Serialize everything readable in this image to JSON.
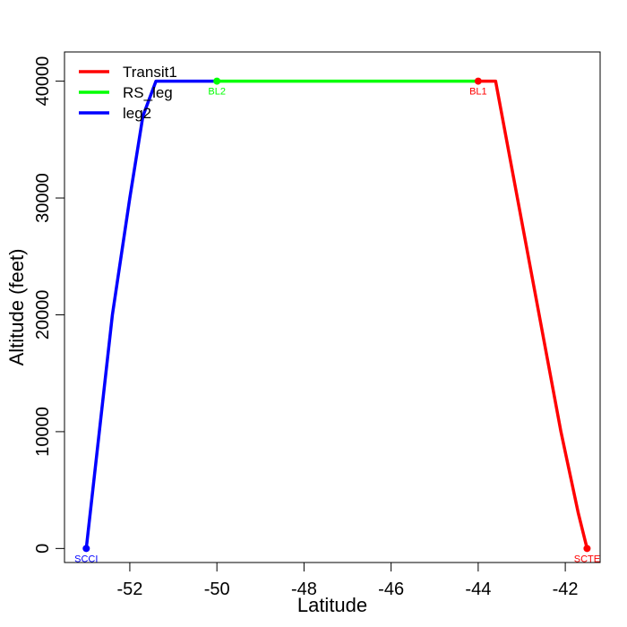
{
  "chart_data": {
    "type": "line",
    "title": "",
    "xlabel": "Latitude",
    "ylabel": "Altitude (feet)",
    "xlim": [
      -53.5,
      -41.2
    ],
    "ylim": [
      -1200,
      42500
    ],
    "x_ticks": [
      -52,
      -50,
      -48,
      -46,
      -44,
      -42
    ],
    "y_ticks": [
      0,
      10000,
      20000,
      30000,
      40000
    ],
    "grid": false,
    "legend_position": "top-left",
    "series": [
      {
        "name": "Transit1",
        "color": "#ff0000",
        "x": [
          -44.0,
          -43.6,
          -43.1,
          -42.6,
          -42.1,
          -41.7,
          -41.5
        ],
        "y": [
          40000,
          40000,
          30000,
          20000,
          10000,
          3000,
          0
        ]
      },
      {
        "name": "RS_leg",
        "color": "#00ff00",
        "x": [
          -50.0,
          -44.0
        ],
        "y": [
          40000,
          40000
        ]
      },
      {
        "name": "leg2",
        "color": "#0000ff",
        "x": [
          -53.0,
          -52.7,
          -52.4,
          -52.0,
          -51.7,
          -51.4,
          -50.0
        ],
        "y": [
          0,
          10000,
          20000,
          30000,
          37000,
          40000,
          40000
        ]
      }
    ],
    "points": [
      {
        "label": "SCCI",
        "x": -53.0,
        "y": 0,
        "color": "#0000ff"
      },
      {
        "label": "BL2",
        "x": -50.0,
        "y": 40000,
        "color": "#00ff00"
      },
      {
        "label": "BL1",
        "x": -44.0,
        "y": 40000,
        "color": "#ff0000"
      },
      {
        "label": "SCTE",
        "x": -41.5,
        "y": 0,
        "color": "#ff0000"
      }
    ]
  }
}
